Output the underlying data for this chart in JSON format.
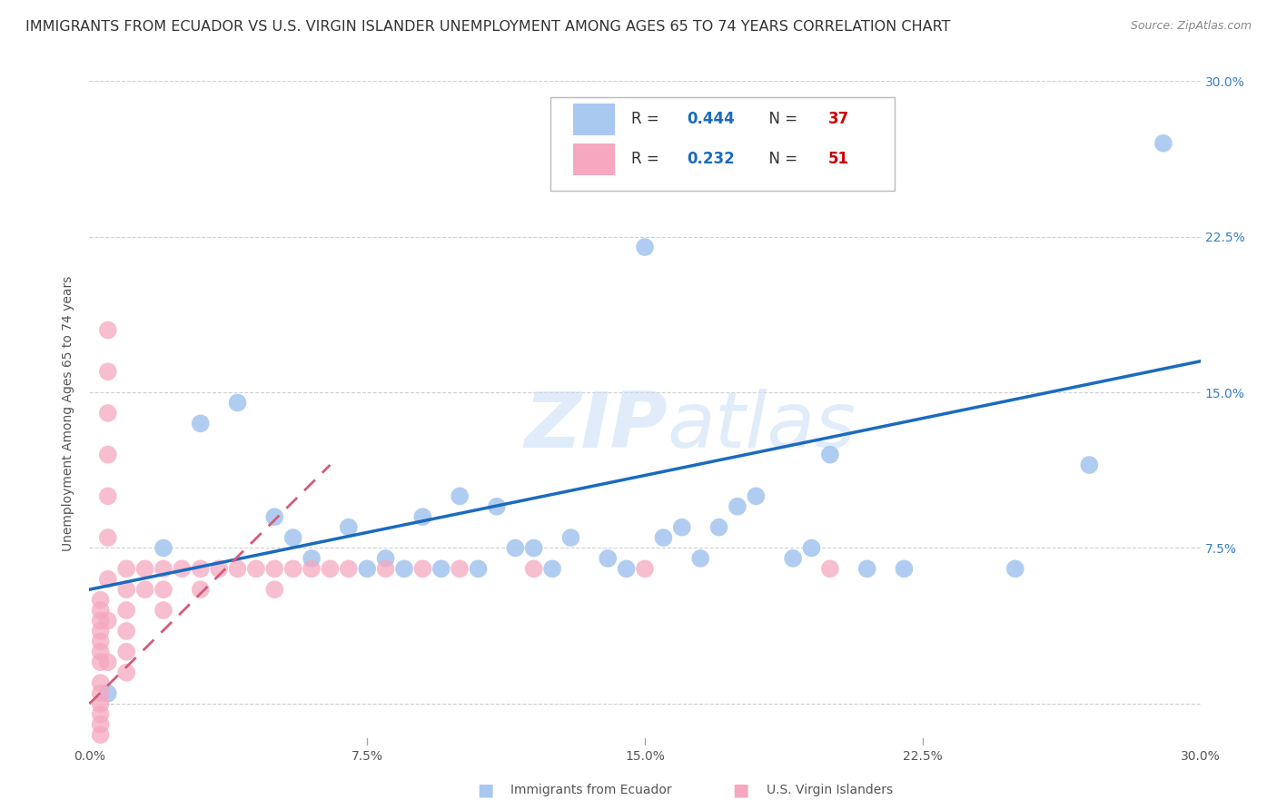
{
  "title": "IMMIGRANTS FROM ECUADOR VS U.S. VIRGIN ISLANDER UNEMPLOYMENT AMONG AGES 65 TO 74 YEARS CORRELATION CHART",
  "source": "Source: ZipAtlas.com",
  "ylabel": "Unemployment Among Ages 65 to 74 years",
  "xmin": 0.0,
  "xmax": 0.3,
  "ymin": -0.02,
  "ymax": 0.3,
  "blue_R": "0.444",
  "blue_N": "37",
  "pink_R": "0.232",
  "pink_N": "51",
  "legend_label_blue": "Immigrants from Ecuador",
  "legend_label_pink": "U.S. Virgin Islanders",
  "watermark_zip": "ZIP",
  "watermark_atlas": "atlas",
  "blue_scatter_x": [
    0.005,
    0.02,
    0.03,
    0.04,
    0.05,
    0.055,
    0.06,
    0.07,
    0.075,
    0.08,
    0.085,
    0.09,
    0.095,
    0.1,
    0.105,
    0.11,
    0.115,
    0.12,
    0.125,
    0.13,
    0.14,
    0.145,
    0.15,
    0.155,
    0.16,
    0.165,
    0.17,
    0.175,
    0.18,
    0.19,
    0.195,
    0.2,
    0.21,
    0.22,
    0.25,
    0.27,
    0.29
  ],
  "blue_scatter_y": [
    0.005,
    0.075,
    0.135,
    0.145,
    0.09,
    0.08,
    0.07,
    0.085,
    0.065,
    0.07,
    0.065,
    0.09,
    0.065,
    0.1,
    0.065,
    0.095,
    0.075,
    0.075,
    0.065,
    0.08,
    0.07,
    0.065,
    0.22,
    0.08,
    0.085,
    0.07,
    0.085,
    0.095,
    0.1,
    0.07,
    0.075,
    0.12,
    0.065,
    0.065,
    0.065,
    0.115,
    0.27
  ],
  "pink_scatter_x": [
    0.003,
    0.003,
    0.003,
    0.003,
    0.003,
    0.003,
    0.003,
    0.003,
    0.003,
    0.003,
    0.003,
    0.003,
    0.003,
    0.005,
    0.005,
    0.005,
    0.005,
    0.005,
    0.005,
    0.005,
    0.005,
    0.005,
    0.01,
    0.01,
    0.01,
    0.01,
    0.01,
    0.01,
    0.015,
    0.015,
    0.02,
    0.02,
    0.02,
    0.025,
    0.03,
    0.03,
    0.035,
    0.04,
    0.045,
    0.05,
    0.05,
    0.055,
    0.06,
    0.065,
    0.07,
    0.08,
    0.09,
    0.1,
    0.12,
    0.15,
    0.2
  ],
  "pink_scatter_y": [
    0.05,
    0.045,
    0.04,
    0.035,
    0.03,
    0.025,
    0.02,
    0.01,
    0.005,
    0.0,
    -0.005,
    -0.01,
    -0.015,
    0.18,
    0.16,
    0.14,
    0.12,
    0.1,
    0.08,
    0.06,
    0.04,
    0.02,
    0.065,
    0.055,
    0.045,
    0.035,
    0.025,
    0.015,
    0.065,
    0.055,
    0.065,
    0.055,
    0.045,
    0.065,
    0.065,
    0.055,
    0.065,
    0.065,
    0.065,
    0.065,
    0.055,
    0.065,
    0.065,
    0.065,
    0.065,
    0.065,
    0.065,
    0.065,
    0.065,
    0.065,
    0.065
  ],
  "blue_line_x": [
    0.0,
    0.3
  ],
  "blue_line_y": [
    0.055,
    0.165
  ],
  "pink_line_x": [
    0.0,
    0.065
  ],
  "pink_line_y": [
    0.0,
    0.115
  ],
  "blue_dot_color": "#a8c8f0",
  "pink_dot_color": "#f5a8c0",
  "blue_line_color": "#1a6bbf",
  "pink_line_color": "#d45b7a",
  "grid_color": "#d0d0d0",
  "background_color": "#ffffff",
  "title_color": "#333333",
  "title_fontsize": 11.5,
  "source_fontsize": 9,
  "axis_label_fontsize": 10,
  "tick_fontsize": 10,
  "legend_R_color": "#1a6bbf",
  "legend_N_color": "#cc0000",
  "right_tick_color": "#3a7fc1"
}
